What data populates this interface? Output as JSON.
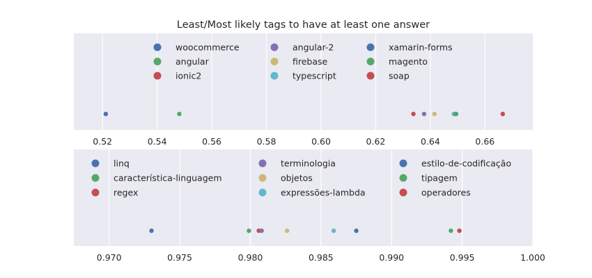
{
  "chart_data": [
    {
      "type": "scatter",
      "title": "Least/Most likely tags to have at least one answer",
      "xlabel": "",
      "ylabel": "",
      "xlim": [
        0.5095,
        0.6775
      ],
      "xticks": [
        "0.52",
        "0.54",
        "0.56",
        "0.58",
        "0.60",
        "0.62",
        "0.64",
        "0.66"
      ],
      "grid": true,
      "legend_placement": "top",
      "series": [
        {
          "name": "woocommerce",
          "x": 0.5212,
          "color": "#4C72B0"
        },
        {
          "name": "angular",
          "x": 0.5481,
          "color": "#55A868"
        },
        {
          "name": "ionic2",
          "x": 0.6338,
          "color": "#C44E52"
        },
        {
          "name": "angular-2",
          "x": 0.6377,
          "color": "#8172B2"
        },
        {
          "name": "firebase",
          "x": 0.6415,
          "color": "#CCB974"
        },
        {
          "name": "typescript",
          "x": 0.6486,
          "color": "#64B5CD"
        },
        {
          "name": "xamarin-forms",
          "x": 0.6494,
          "color": "#4C72B0"
        },
        {
          "name": "magento",
          "x": 0.6492,
          "color": "#55A868"
        },
        {
          "name": "soap",
          "x": 0.6665,
          "color": "#C44E52"
        }
      ]
    },
    {
      "type": "scatter",
      "title": "",
      "xlabel": "",
      "ylabel": "",
      "xlim": [
        0.9675,
        1.0
      ],
      "xticks": [
        "0.970",
        "0.975",
        "0.980",
        "0.985",
        "0.990",
        "0.995",
        "1.000"
      ],
      "grid": true,
      "legend_placement": "top",
      "series": [
        {
          "name": "linq",
          "x": 0.973,
          "color": "#4C72B0"
        },
        {
          "name": "característica-linguagem",
          "x": 0.9799,
          "color": "#55A868"
        },
        {
          "name": "regex",
          "x": 0.9806,
          "color": "#C44E52"
        },
        {
          "name": "terminologia",
          "x": 0.9808,
          "color": "#8172B2"
        },
        {
          "name": "objetos",
          "x": 0.9826,
          "color": "#CCB974"
        },
        {
          "name": "expressões-lambda",
          "x": 0.9859,
          "color": "#64B5CD"
        },
        {
          "name": "estilo-de-codificação",
          "x": 0.9875,
          "color": "#4C72B0"
        },
        {
          "name": "tipagem",
          "x": 0.9942,
          "color": "#55A868"
        },
        {
          "name": "operadores",
          "x": 0.9948,
          "color": "#C44E52"
        }
      ]
    }
  ]
}
